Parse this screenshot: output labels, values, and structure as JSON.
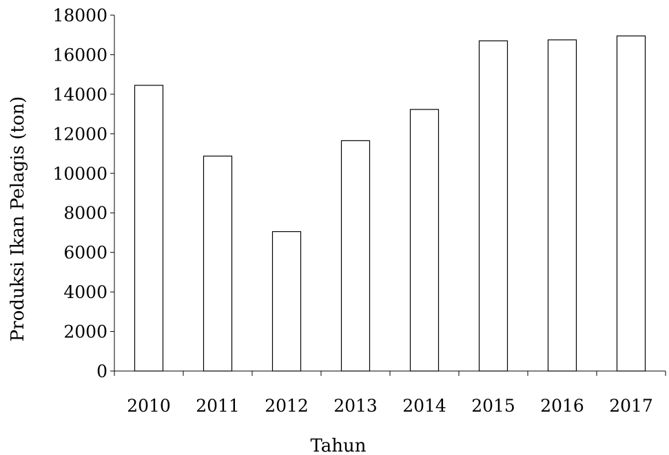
{
  "chart_data": {
    "type": "bar",
    "title": "",
    "xlabel": "Tahun",
    "ylabel": "Produksi Ikan Pelagis (ton)",
    "categories": [
      "2010",
      "2011",
      "2012",
      "2013",
      "2014",
      "2015",
      "2016",
      "2017"
    ],
    "values": [
      14450,
      10870,
      7050,
      11650,
      13230,
      16700,
      16750,
      16950
    ],
    "ylim": [
      0,
      18000
    ],
    "yticks": [
      0,
      2000,
      4000,
      6000,
      8000,
      10000,
      12000,
      14000,
      16000,
      18000
    ],
    "grid": false,
    "legend": "none",
    "bar_fill": "#ffffff",
    "bar_stroke": "#000000",
    "axis_color": "#000000"
  }
}
